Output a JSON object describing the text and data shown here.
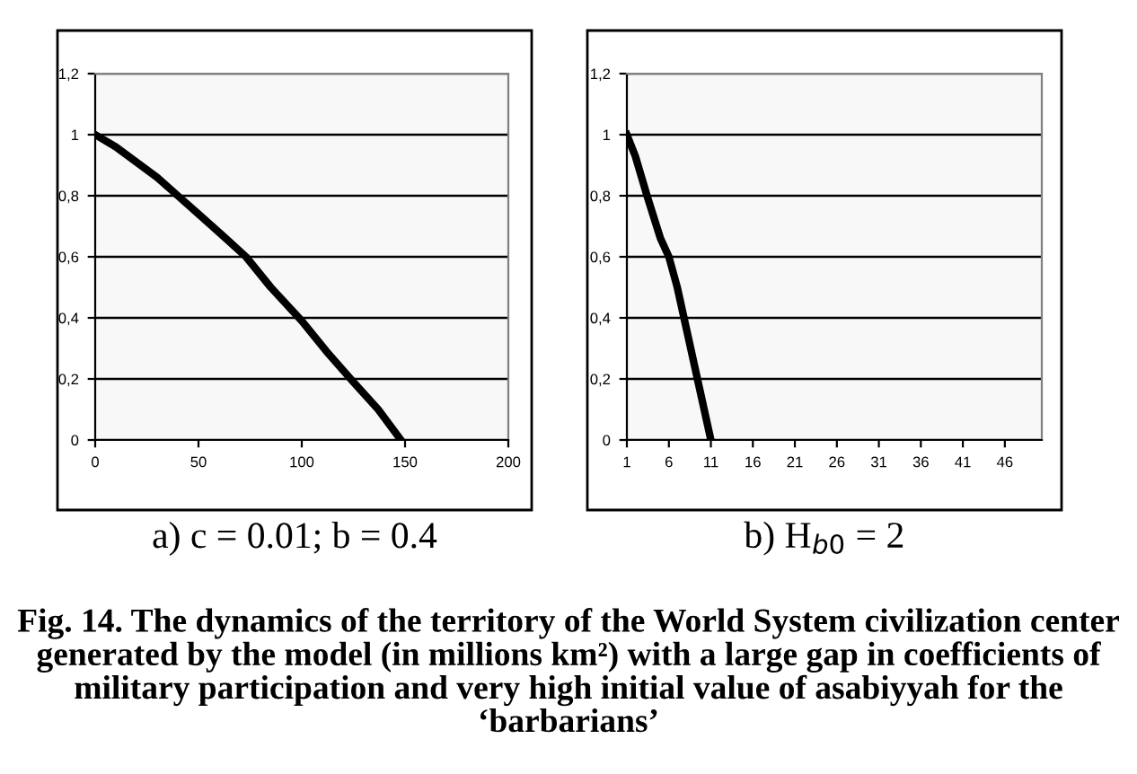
{
  "chart_data": [
    {
      "type": "line",
      "xlabel": "a) c = 0.01; b = 0.4",
      "x": [
        0,
        10,
        20,
        30,
        40,
        50,
        60,
        73,
        85,
        100,
        112,
        125,
        137,
        148
      ],
      "series": [
        {
          "color": "#000000",
          "values": [
            1,
            0.96,
            0.91,
            0.86,
            0.8,
            0.74,
            0.68,
            0.6,
            0.5,
            0.39,
            0.29,
            0.19,
            0.1,
            0
          ]
        }
      ],
      "xlim": [
        0,
        200
      ],
      "xticks": [
        0,
        50,
        100,
        150,
        200
      ],
      "ylim": [
        0,
        1.2
      ],
      "yticks": [
        0,
        {
          "value": 0.2,
          "label": "0,2"
        },
        {
          "value": 0.4,
          "label": "0,4"
        },
        {
          "value": 0.6,
          "label": "0,6"
        },
        {
          "value": 0.8,
          "label": "0,8"
        },
        1,
        {
          "value": 1.2,
          "label": "1,2"
        }
      ],
      "grid": "y",
      "marker": "none",
      "line_style": "solid"
    },
    {
      "type": "line",
      "xlabel": "b) H$_{b0}$ = 2",
      "x": [
        1,
        2,
        3.4,
        5,
        6,
        7,
        7.8,
        9.4,
        11
      ],
      "series": [
        {
          "color": "#000000",
          "values": [
            1,
            0.93,
            0.8,
            0.66,
            0.6,
            0.5,
            0.4,
            0.2,
            0
          ]
        }
      ],
      "xlim": [
        1,
        50.4
      ],
      "xticks": [
        1,
        6,
        11,
        16,
        21,
        26,
        31,
        36,
        41,
        46
      ],
      "ylim": [
        0,
        1.2
      ],
      "yticks": [
        0,
        {
          "value": 0.2,
          "label": "0,2"
        },
        {
          "value": 0.4,
          "label": "0,4"
        },
        {
          "value": 0.6,
          "label": "0,6"
        },
        {
          "value": 0.8,
          "label": "0,8"
        },
        1,
        {
          "value": 1.2,
          "label": "1,2"
        }
      ],
      "grid": "y",
      "marker": "none",
      "line_style": "solid",
      "annotations": [
        "Fig. 14. The dynamics of the territory of the World System civilization center generated by the model (in millions km²) with a large gap in coefficients of military participation and very high initial value of asabiyyah for the ‘barbarians’"
      ]
    }
  ]
}
